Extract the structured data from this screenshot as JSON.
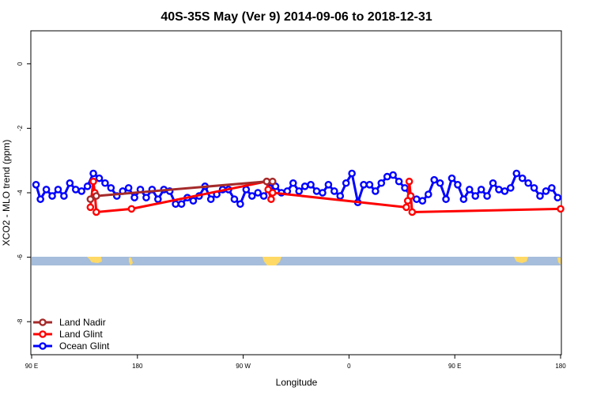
{
  "chart_data": {
    "type": "line",
    "title": "40S-35S May (Ver 9)   2014-09-06 to 2018-12-31",
    "xlabel": "Longitude",
    "ylabel": "XCO2 - MLO trend (ppm)",
    "xlim": [
      90,
      450
    ],
    "ylim": [
      -9,
      1
    ],
    "x_ticks": [
      {
        "value": 90,
        "label": "90 E"
      },
      {
        "value": 162,
        "label": "180"
      },
      {
        "value": 234,
        "label": "90 W"
      },
      {
        "value": 306,
        "label": "0"
      },
      {
        "value": 378,
        "label": "90 E"
      },
      {
        "value": 450,
        "label": "180"
      }
    ],
    "y_ticks": [
      {
        "value": 0,
        "label": "0"
      },
      {
        "value": -2,
        "label": "-2"
      },
      {
        "value": -4,
        "label": "-4"
      },
      {
        "value": -6,
        "label": "-6"
      },
      {
        "value": -8,
        "label": "-8"
      }
    ],
    "legend_position": "bottom-left",
    "series": [
      {
        "name": "Land Nadir",
        "color": "#a52a2a",
        "x": [
          130,
          134,
          250,
          254
        ],
        "y": [
          -4.2,
          -4.1,
          -3.65,
          -3.65
        ]
      },
      {
        "name": "Land Glint",
        "color": "#ff0000",
        "x": [
          130,
          132,
          133,
          134,
          158,
          250,
          251,
          253,
          254,
          345,
          346,
          347,
          348,
          349,
          450
        ],
        "y": [
          -4.45,
          -3.65,
          -4.0,
          -4.6,
          -4.5,
          -3.65,
          -3.9,
          -4.2,
          -4.0,
          -4.45,
          -4.25,
          -3.65,
          -4.1,
          -4.6,
          -4.5
        ]
      },
      {
        "name": "Ocean Glint",
        "color": "#0000ff",
        "x": [
          93,
          96,
          100,
          104,
          108,
          112,
          116,
          120,
          124,
          128,
          132,
          136,
          140,
          144,
          148,
          152,
          156,
          160,
          164,
          168,
          172,
          176,
          180,
          184,
          188,
          192,
          196,
          200,
          204,
          208,
          212,
          216,
          220,
          224,
          228,
          232,
          236,
          240,
          244,
          248,
          252,
          256,
          260,
          264,
          268,
          272,
          276,
          280,
          284,
          288,
          292,
          296,
          300,
          304,
          308,
          312,
          316,
          320,
          324,
          328,
          332,
          336,
          340,
          344,
          348,
          352,
          356,
          360,
          364,
          368,
          372,
          376,
          380,
          384,
          388,
          392,
          396,
          400,
          404,
          408,
          412,
          416,
          420,
          424,
          428,
          432,
          436,
          440,
          444,
          448
        ],
        "y": [
          -3.75,
          -4.2,
          -3.9,
          -4.1,
          -3.9,
          -4.1,
          -3.7,
          -3.9,
          -3.95,
          -3.8,
          -3.4,
          -3.55,
          -3.7,
          -3.85,
          -4.1,
          -3.95,
          -3.85,
          -4.15,
          -3.9,
          -4.15,
          -3.9,
          -4.2,
          -3.9,
          -3.95,
          -4.35,
          -4.35,
          -4.15,
          -4.25,
          -4.1,
          -3.8,
          -4.2,
          -4.05,
          -3.9,
          -3.9,
          -4.2,
          -4.35,
          -3.9,
          -4.1,
          -4.0,
          -4.1,
          -3.85,
          -3.8,
          -4.0,
          -3.95,
          -3.7,
          -3.95,
          -3.8,
          -3.75,
          -3.95,
          -4.0,
          -3.75,
          -3.95,
          -4.1,
          -3.7,
          -3.4,
          -4.3,
          -3.75,
          -3.75,
          -3.95,
          -3.7,
          -3.5,
          -3.45,
          -3.65,
          -3.85,
          -4.1,
          -4.2,
          -4.25,
          -4.05,
          -3.6,
          -3.7,
          -4.2,
          -3.55,
          -3.75,
          -4.2,
          -3.9,
          -4.1,
          -3.9,
          -4.1,
          -3.7,
          -3.9,
          -3.95,
          -3.85,
          -3.4,
          -3.55,
          -3.7,
          -3.85,
          -4.1,
          -3.95,
          -3.85,
          -4.15
        ]
      }
    ]
  }
}
